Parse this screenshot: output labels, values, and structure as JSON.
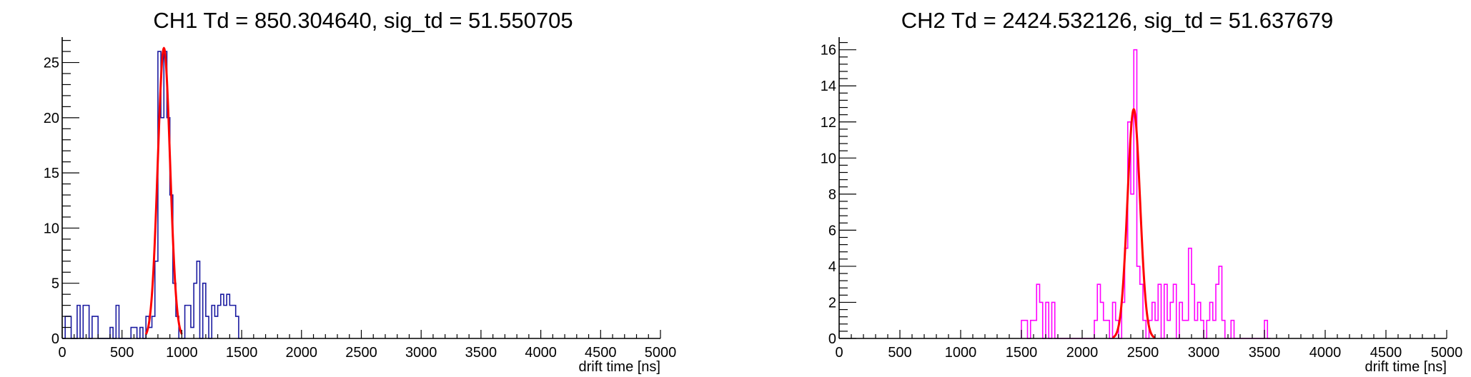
{
  "colors": {
    "fit": "#ff0000",
    "axis": "#000000"
  },
  "chart_data": [
    {
      "type": "histogram",
      "title": "CH1 Td = 850.304640, sig_td = 51.550705",
      "xlabel": "drift time [ns]",
      "ylabel": "",
      "xlim": [
        0,
        5000
      ],
      "ylim": [
        0,
        27.3
      ],
      "xticks": [
        0,
        500,
        1000,
        1500,
        2000,
        2500,
        3000,
        3500,
        4000,
        4500,
        5000
      ],
      "yticks": [
        0,
        5,
        10,
        15,
        20,
        25
      ],
      "bin_width": 25,
      "series": [
        {
          "color": "#1a1aa0",
          "bins": [
            [
              0,
              0
            ],
            [
              25,
              2
            ],
            [
              50,
              2
            ],
            [
              75,
              0
            ],
            [
              100,
              0
            ],
            [
              125,
              3
            ],
            [
              150,
              0
            ],
            [
              175,
              3
            ],
            [
              200,
              3
            ],
            [
              225,
              0
            ],
            [
              250,
              2
            ],
            [
              275,
              2
            ],
            [
              300,
              0
            ],
            [
              325,
              0
            ],
            [
              350,
              0
            ],
            [
              375,
              0
            ],
            [
              400,
              1
            ],
            [
              425,
              0
            ],
            [
              450,
              3
            ],
            [
              475,
              0
            ],
            [
              500,
              0
            ],
            [
              525,
              0
            ],
            [
              550,
              0
            ],
            [
              575,
              1
            ],
            [
              600,
              1
            ],
            [
              625,
              0
            ],
            [
              650,
              1
            ],
            [
              675,
              0
            ],
            [
              700,
              2
            ],
            [
              725,
              1
            ],
            [
              750,
              2
            ],
            [
              775,
              7
            ],
            [
              800,
              26
            ],
            [
              825,
              20
            ],
            [
              850,
              26
            ],
            [
              875,
              20
            ],
            [
              900,
              13
            ],
            [
              925,
              5
            ],
            [
              950,
              2
            ],
            [
              975,
              0
            ],
            [
              1000,
              0
            ],
            [
              1025,
              3
            ],
            [
              1050,
              3
            ],
            [
              1075,
              1
            ],
            [
              1100,
              5
            ],
            [
              1125,
              7
            ],
            [
              1150,
              0
            ],
            [
              1175,
              5
            ],
            [
              1200,
              2
            ],
            [
              1225,
              0
            ],
            [
              1250,
              3
            ],
            [
              1275,
              2
            ],
            [
              1300,
              3
            ],
            [
              1325,
              4
            ],
            [
              1350,
              3
            ],
            [
              1375,
              4
            ],
            [
              1400,
              3
            ],
            [
              1425,
              3
            ],
            [
              1450,
              2
            ],
            [
              1475,
              0
            ]
          ]
        }
      ],
      "fit": {
        "type": "gaussian",
        "amplitude": 26.3,
        "mean": 850.30464,
        "sigma": 51.550705,
        "range": [
          700,
          1000
        ]
      }
    },
    {
      "type": "histogram",
      "title": "CH2 Td = 2424.532126, sig_td = 51.637679",
      "xlabel": "drift time [ns]",
      "ylabel": "",
      "xlim": [
        0,
        5000
      ],
      "ylim": [
        0,
        16.7
      ],
      "xticks": [
        0,
        500,
        1000,
        1500,
        2000,
        2500,
        3000,
        3500,
        4000,
        4500,
        5000
      ],
      "yticks": [
        0,
        2,
        4,
        6,
        8,
        10,
        12,
        14,
        16
      ],
      "bin_width": 25,
      "series": [
        {
          "color": "#ff00ff",
          "bins": [
            [
              1500,
              1
            ],
            [
              1525,
              1
            ],
            [
              1550,
              0
            ],
            [
              1575,
              1
            ],
            [
              1600,
              1
            ],
            [
              1625,
              3
            ],
            [
              1650,
              2
            ],
            [
              1675,
              0
            ],
            [
              1700,
              2
            ],
            [
              1725,
              0
            ],
            [
              1750,
              2
            ],
            [
              1775,
              0
            ],
            [
              1800,
              0
            ],
            [
              1825,
              0
            ],
            [
              1850,
              0
            ],
            [
              1875,
              0
            ],
            [
              1900,
              0
            ],
            [
              1925,
              0
            ],
            [
              1950,
              0
            ],
            [
              1975,
              0
            ],
            [
              2000,
              0
            ],
            [
              2025,
              0
            ],
            [
              2050,
              0
            ],
            [
              2075,
              0
            ],
            [
              2100,
              1
            ],
            [
              2125,
              3
            ],
            [
              2150,
              2
            ],
            [
              2175,
              1
            ],
            [
              2200,
              1
            ],
            [
              2225,
              0
            ],
            [
              2250,
              2
            ],
            [
              2275,
              1
            ],
            [
              2300,
              0
            ],
            [
              2325,
              2
            ],
            [
              2350,
              5
            ],
            [
              2375,
              12
            ],
            [
              2400,
              8
            ],
            [
              2425,
              16
            ],
            [
              2450,
              4
            ],
            [
              2475,
              3
            ],
            [
              2500,
              1
            ],
            [
              2525,
              0
            ],
            [
              2550,
              1
            ],
            [
              2575,
              2
            ],
            [
              2600,
              1
            ],
            [
              2625,
              3
            ],
            [
              2650,
              0
            ],
            [
              2675,
              3
            ],
            [
              2700,
              1
            ],
            [
              2725,
              2
            ],
            [
              2750,
              3
            ],
            [
              2775,
              0
            ],
            [
              2800,
              2
            ],
            [
              2825,
              1
            ],
            [
              2850,
              1
            ],
            [
              2875,
              5
            ],
            [
              2900,
              3
            ],
            [
              2925,
              1
            ],
            [
              2950,
              2
            ],
            [
              2975,
              1
            ],
            [
              3000,
              0
            ],
            [
              3025,
              1
            ],
            [
              3050,
              2
            ],
            [
              3075,
              1
            ],
            [
              3100,
              3
            ],
            [
              3125,
              4
            ],
            [
              3150,
              1
            ],
            [
              3175,
              0
            ],
            [
              3200,
              0
            ],
            [
              3225,
              1
            ],
            [
              3250,
              0
            ],
            [
              3275,
              0
            ],
            [
              3300,
              0
            ],
            [
              3325,
              0
            ],
            [
              3350,
              0
            ],
            [
              3375,
              0
            ],
            [
              3400,
              0
            ],
            [
              3425,
              0
            ],
            [
              3450,
              0
            ],
            [
              3475,
              0
            ],
            [
              3500,
              1
            ],
            [
              3525,
              0
            ]
          ]
        }
      ],
      "fit": {
        "type": "gaussian",
        "amplitude": 12.7,
        "mean": 2424.532126,
        "sigma": 51.637679,
        "range": [
          2250,
          2600
        ]
      }
    }
  ]
}
